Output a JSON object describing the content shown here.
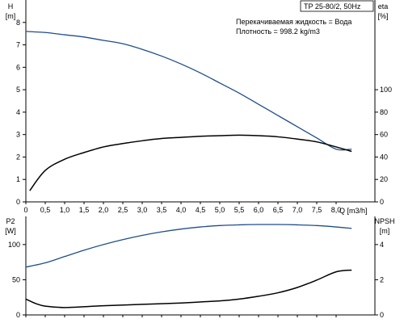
{
  "chart_data": [
    {
      "type": "line",
      "title": "TP 25-80/2, 50Hz",
      "annotations": [
        "Перекачиваемая жидкость = Вода",
        "Плотность = 998.2 kg/m3"
      ],
      "xlabel": "Q [m3/h]",
      "xlim": [
        0,
        9
      ],
      "x_ticks": [
        0,
        0.5,
        1.0,
        1.5,
        2.0,
        2.5,
        3.0,
        3.5,
        4.0,
        4.5,
        5.0,
        5.5,
        6.0,
        6.5,
        7.0,
        7.5,
        8.0
      ],
      "x_tick_labels": [
        "0",
        "0,5",
        "1,0",
        "1,5",
        "2,0",
        "2,5",
        "3,0",
        "3,5",
        "4,0",
        "4,5",
        "5,0",
        "5,5",
        "6,0",
        "6,5",
        "7,0",
        "7,5",
        "8,0"
      ],
      "ylabel": "H",
      "ylabel_unit": "[m]",
      "ylim": [
        0,
        9
      ],
      "y_ticks": [
        0,
        1,
        2,
        3,
        4,
        5,
        6,
        7,
        8
      ],
      "y2label": "eta",
      "y2label_unit": "[%]",
      "y2lim": [
        0,
        180
      ],
      "y2_ticks": [
        0,
        20,
        40,
        60,
        80,
        100
      ],
      "grid": false,
      "series": [
        {
          "axis": "left",
          "color": "#1f4e8c",
          "x": [
            0,
            0.5,
            1.0,
            1.5,
            2.0,
            2.5,
            3.0,
            3.5,
            4.0,
            4.5,
            5.0,
            5.5,
            6.0,
            6.5,
            7.0,
            7.5,
            8.0,
            8.4
          ],
          "y": [
            7.6,
            7.55,
            7.45,
            7.35,
            7.2,
            7.05,
            6.8,
            6.5,
            6.15,
            5.75,
            5.3,
            4.85,
            4.35,
            3.85,
            3.35,
            2.85,
            2.35,
            2.35
          ]
        },
        {
          "axis": "right",
          "color": "#000000",
          "x": [
            0.1,
            0.5,
            1.0,
            1.5,
            2.0,
            2.5,
            3.0,
            3.5,
            4.0,
            4.5,
            5.0,
            5.5,
            6.0,
            6.5,
            7.0,
            7.5,
            8.0,
            8.4
          ],
          "y": [
            10,
            28,
            38,
            44,
            49,
            52,
            54.5,
            56.5,
            57.5,
            58.5,
            59,
            59.5,
            59,
            58,
            56,
            53.5,
            49,
            45
          ]
        }
      ]
    },
    {
      "type": "line",
      "xlim": [
        0,
        9
      ],
      "ylabel": "P2",
      "ylabel_unit": "[W]",
      "ylim": [
        0,
        140
      ],
      "y_ticks": [
        0,
        50,
        100
      ],
      "y2label": "NPSH",
      "y2label_unit": "[m]",
      "y2lim": [
        0,
        5.6
      ],
      "y2_ticks": [
        0,
        2,
        4
      ],
      "grid": false,
      "series": [
        {
          "axis": "left",
          "color": "#1f4e8c",
          "x": [
            0,
            0.5,
            1.0,
            1.5,
            2.0,
            2.5,
            3.0,
            3.5,
            4.0,
            4.5,
            5.0,
            5.5,
            6.0,
            6.5,
            7.0,
            7.5,
            8.0,
            8.4
          ],
          "y": [
            68,
            74,
            83,
            92,
            100,
            107,
            113,
            118,
            122,
            125,
            127,
            128,
            128.5,
            128.5,
            128,
            127,
            125,
            123
          ]
        },
        {
          "axis": "right",
          "color": "#000000",
          "x": [
            0,
            0.25,
            0.5,
            1.0,
            2.0,
            3.0,
            4.0,
            5.0,
            5.5,
            6.0,
            6.5,
            7.0,
            7.5,
            8.0,
            8.4
          ],
          "y": [
            0.9,
            0.65,
            0.5,
            0.42,
            0.52,
            0.6,
            0.68,
            0.8,
            0.9,
            1.06,
            1.26,
            1.56,
            1.98,
            2.45,
            2.55
          ]
        }
      ]
    }
  ]
}
